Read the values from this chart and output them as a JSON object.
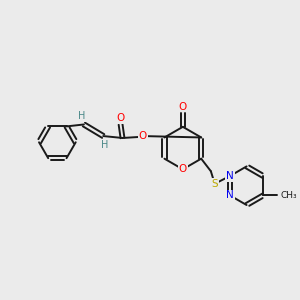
{
  "bg_color": "#ebebeb",
  "bond_color": "#1a1a1a",
  "atom_colors": {
    "O": "#ff0000",
    "N": "#0000ee",
    "S": "#bbaa00",
    "H": "#4a8888",
    "C": "#1a1a1a"
  },
  "figsize": [
    3.0,
    3.0
  ],
  "dpi": 100
}
